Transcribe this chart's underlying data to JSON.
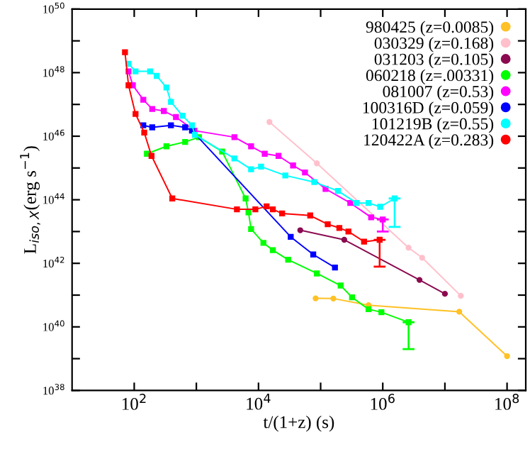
{
  "chart_data": {
    "type": "line",
    "xlabel": "t/(1+z) (s)",
    "ylabel": "L$_{iso,X}$(erg s$^{−1}$)",
    "log": "xy",
    "legend": "top right",
    "grid": false,
    "xlim": [
      10.0,
      200000000.0
    ],
    "ylim": [
      1e+38,
      1e+50
    ],
    "xticks": [
      {
        "value": 100.0,
        "label": "10$^{2}$"
      },
      {
        "value": 1000.0,
        "label": null
      },
      {
        "value": 10000.0,
        "label": "10$^{4}$"
      },
      {
        "value": 100000.0,
        "label": null
      },
      {
        "value": 1000000.0,
        "label": "10$^{6}$"
      },
      {
        "value": 10000000.0,
        "label": null
      },
      {
        "value": 100000000.0,
        "label": "10$^{8}$"
      }
    ],
    "yticks": [
      {
        "value": 1e+38,
        "label": "10$^{38}$"
      },
      {
        "value": 1e+39,
        "label": null
      },
      {
        "value": 1e+40,
        "label": "10$^{40}$"
      },
      {
        "value": 1e+41,
        "label": null
      },
      {
        "value": 1e+42,
        "label": "10$^{42}$"
      },
      {
        "value": 1e+43,
        "label": null
      },
      {
        "value": 1e+44,
        "label": "10$^{44}$"
      },
      {
        "value": 1e+45,
        "label": null
      },
      {
        "value": 1e+46,
        "label": "10$^{46}$"
      },
      {
        "value": 1e+47,
        "label": null
      },
      {
        "value": 1e+48,
        "label": "10$^{48}$"
      },
      {
        "value": 1e+49,
        "label": null
      },
      {
        "value": 1e+50,
        "label": "10$^{50}$"
      }
    ],
    "series": [
      {
        "name": "980425 (z=0.0085)",
        "color": "#ffc125",
        "marker": "circle",
        "x": [
          83000.0,
          160000.0,
          590000.0,
          17000000.0,
          100000000.0
        ],
        "values": [
          7.9e+40,
          7.8e+40,
          4.8e+40,
          3e+40,
          1.2e+39
        ]
      },
      {
        "name": "030329 (z=0.168)",
        "color": "#ffc0cb",
        "marker": "circle",
        "x": [
          15000.0,
          87000.0,
          2600000.0,
          4300000.0,
          18000000.0
        ],
        "values": [
          2.8e+46,
          1.4e+45,
          3.1e+42,
          1.5e+42,
          9.5e+40
        ]
      },
      {
        "name": "031203 (z=0.105)",
        "color": "#8b0a50",
        "marker": "circle",
        "x": [
          47000.0,
          240000.0,
          3900000.0,
          10000000.0
        ],
        "values": [
          1.1e+43,
          5.5e+42,
          3e+41,
          1.1e+41
        ]
      },
      {
        "name": "060218 (z=.00331)",
        "color": "#00ff00",
        "marker": "square",
        "x": [
          160.0,
          330.0,
          660.0,
          1100.0,
          2600.0,
          6200.0,
          6900.0,
          7600.0,
          12000.0,
          17000.0,
          30000.0,
          87000.0,
          210000.0,
          320000.0,
          590000.0,
          950000.0,
          2600000.0
        ],
        "values": [
          2.8e+45,
          4.8e+45,
          6.6e+45,
          9.3e+45,
          3.3e+45,
          1.1e+44,
          4e+43,
          1.2e+43,
          4.4e+42,
          2.6e+42,
          1.3e+42,
          4.8e+41,
          2e+41,
          8.5e+40,
          3.6e+40,
          2.9e+40,
          1.4e+40
        ],
        "errors": [
          null,
          null,
          null,
          null,
          null,
          null,
          null,
          null,
          null,
          null,
          null,
          null,
          null,
          null,
          null,
          null,
          [
            2e+39,
            1.4e+40
          ]
        ]
      },
      {
        "name": "081007 (z=0.53)",
        "color": "#ff00ff",
        "marker": "square",
        "x": [
          81.0,
          95.0,
          140.0,
          195.0,
          300.0,
          470.0,
          930.0,
          4100.0,
          7600.0,
          12600.0,
          21000.0,
          36000.0,
          56000.0,
          120000.0,
          300000.0,
          650000.0,
          1000000.0
        ],
        "values": [
          1.1e+48,
          4e+47,
          1.4e+47,
          7.2e+46,
          6.2e+46,
          4e+46,
          1.5e+46,
          9.3e+45,
          4.8e+45,
          2.8e+45,
          2.4e+45,
          1.2e+45,
          7.2e+44,
          2.2e+44,
          7.9e+43,
          2.8e+43,
          2.4e+43
        ],
        "errors": [
          null,
          null,
          null,
          null,
          null,
          null,
          null,
          null,
          null,
          null,
          null,
          null,
          null,
          null,
          null,
          null,
          [
            1e+43,
            2.4e+43
          ]
        ]
      },
      {
        "name": "100316D (z=0.059)",
        "color": "#0000ff",
        "marker": "square",
        "x": [
          140.0,
          195.0,
          390.0,
          660.0,
          850.0,
          33000.0,
          76000.0,
          170000.0
        ],
        "values": [
          2.2e+46,
          1.9e+46,
          2.2e+46,
          1.9e+46,
          1.5e+46,
          6.8e+42,
          1.9e+42,
          7.4e+41
        ]
      },
      {
        "name": "101219B (z=0.55)",
        "color": "#00ffff",
        "marker": "square",
        "x": [
          81.0,
          105.0,
          180.0,
          230.0,
          330.0,
          390.0,
          600.0,
          850.0,
          950.0,
          4100.0,
          7600.0,
          11000.0,
          27000.0,
          79000.0,
          190000.0,
          380000.0,
          590000.0,
          910000.0,
          1550000.0
        ],
        "values": [
          1.9e+48,
          1.1e+48,
          1.1e+48,
          7.9e+47,
          3.4e+47,
          1.2e+47,
          4.4e+46,
          2.2e+46,
          1.1e+46,
          2e+45,
          9.1e+44,
          1.1e+45,
          5.8e+44,
          3.6e+44,
          1.9e+44,
          7.9e+43,
          7.9e+43,
          6e+43,
          1.1e+44
        ],
        "errors": [
          null,
          null,
          null,
          null,
          null,
          null,
          null,
          null,
          null,
          null,
          null,
          null,
          null,
          null,
          null,
          null,
          null,
          null,
          [
            1.4e+43,
            1.1e+44
          ]
        ]
      },
      {
        "name": "120422A (z=0.283)",
        "color": "#ff0000",
        "marker": "square",
        "x": [
          71.0,
          81.0,
          105.0,
          145.0,
          190.0,
          410.0,
          4500.0,
          8900.0,
          13500.0,
          17000.0,
          24000.0,
          68000.0,
          130000.0,
          200000.0,
          280000.0,
          500000.0,
          890000.0
        ],
        "values": [
          4.4e+48,
          4e+47,
          5e+46,
          1.3e+46,
          2.4e+45,
          1.1e+44,
          5e+43,
          5e+43,
          6.2e+43,
          5e+43,
          3.7e+43,
          3.2e+43,
          1.7e+43,
          1.3e+43,
          1e+43,
          4.8e+42,
          5.5e+42
        ],
        "errors": [
          null,
          null,
          null,
          null,
          null,
          null,
          null,
          null,
          null,
          null,
          null,
          null,
          null,
          null,
          null,
          null,
          [
            7.9e+41,
            5.5e+42
          ]
        ]
      }
    ]
  }
}
